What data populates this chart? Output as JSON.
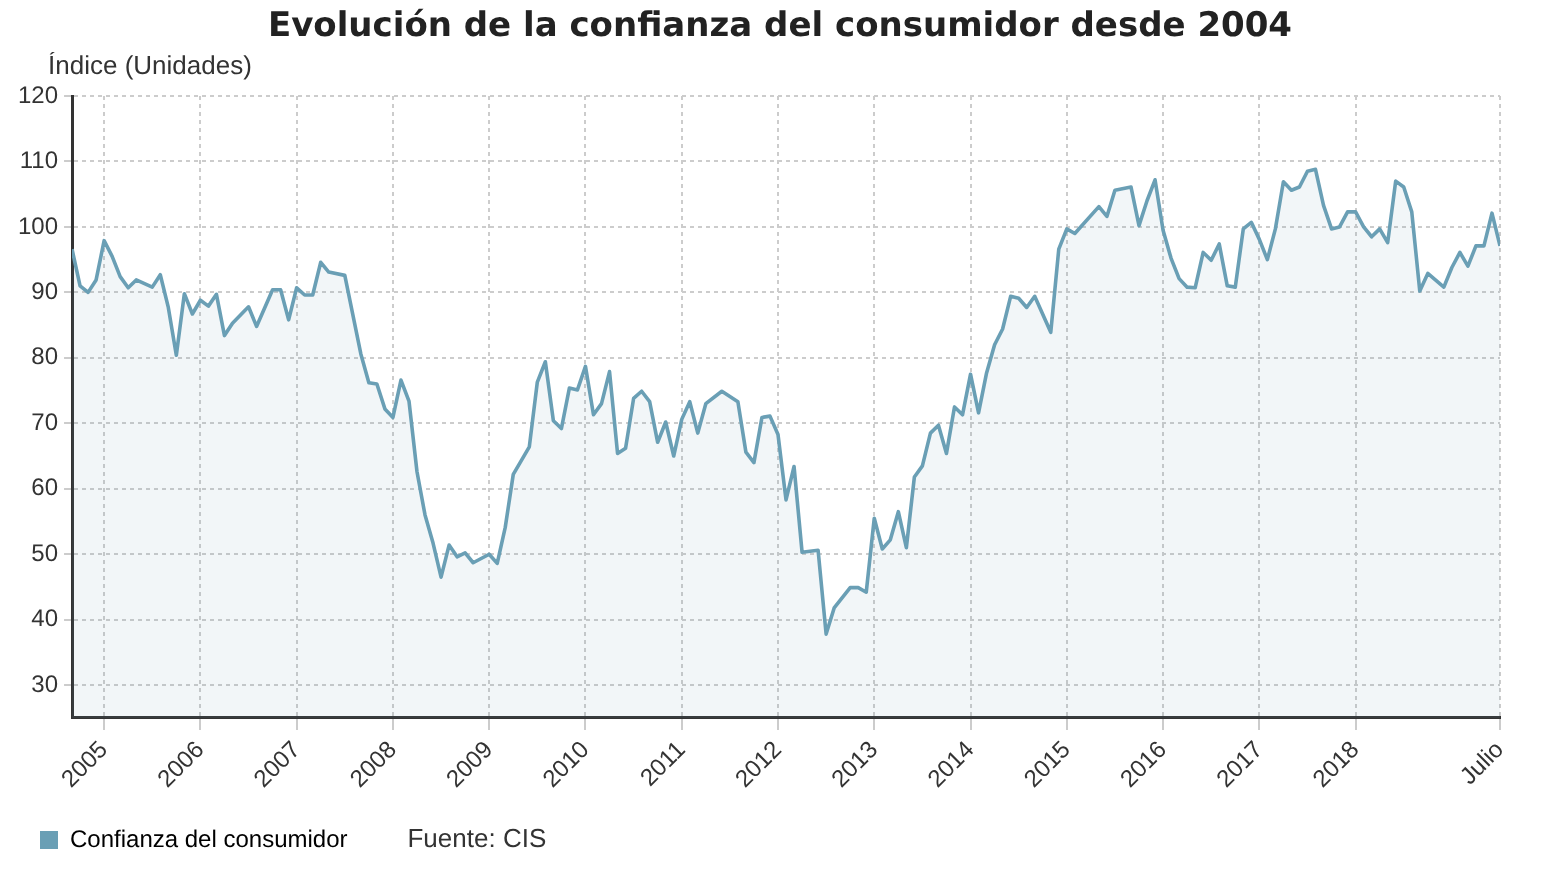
{
  "chart_data": {
    "type": "area",
    "title": "Evolución de la confianza del consumidor desde 2004",
    "ylabel": "Índice (Unidades)",
    "annotations": [
      "Fuente: CIS"
    ],
    "xlim": [
      "2004-09",
      "2019-07"
    ],
    "ylim": [
      25,
      120
    ],
    "yticks": [
      30,
      40,
      50,
      60,
      70,
      80,
      90,
      100,
      110,
      120
    ],
    "xticks": [
      "2005",
      "2006",
      "2007",
      "2008",
      "2009",
      "2010",
      "2011",
      "2012",
      "2013",
      "2014",
      "2015",
      "2016",
      "2017",
      "2018",
      {
        "value": "2019-07",
        "label": "Julio"
      }
    ],
    "grid": true,
    "legend": "bottom",
    "marker": "none",
    "line_style": "solid",
    "series": [
      {
        "name": "Confianza del consumidor",
        "color": "#6a9fb5",
        "x": [
          "2004-09",
          "2004-10",
          "2004-11",
          "2004-12",
          "2005-01",
          "2005-02",
          "2005-03",
          "2005-04",
          "2005-05",
          "2005-07",
          "2005-08",
          "2005-09",
          "2005-10",
          "2005-11",
          "2005-12",
          "2006-01",
          "2006-02",
          "2006-03",
          "2006-04",
          "2006-05",
          "2006-07",
          "2006-08",
          "2006-10",
          "2006-11",
          "2006-12",
          "2007-01",
          "2007-02",
          "2007-03",
          "2007-04",
          "2007-05",
          "2007-07",
          "2007-09",
          "2007-10",
          "2007-11",
          "2007-12",
          "2008-01",
          "2008-02",
          "2008-03",
          "2008-04",
          "2008-05",
          "2008-06",
          "2008-07",
          "2008-08",
          "2008-09",
          "2008-10",
          "2008-11",
          "2009-01",
          "2009-02",
          "2009-03",
          "2009-04",
          "2009-06",
          "2009-07",
          "2009-08",
          "2009-09",
          "2009-10",
          "2009-11",
          "2009-12",
          "2010-01",
          "2010-02",
          "2010-03",
          "2010-04",
          "2010-05",
          "2010-06",
          "2010-07",
          "2010-08",
          "2010-09",
          "2010-10",
          "2010-11",
          "2010-12",
          "2011-01",
          "2011-02",
          "2011-03",
          "2011-04",
          "2011-06",
          "2011-08",
          "2011-09",
          "2011-10",
          "2011-11",
          "2011-12",
          "2012-01",
          "2012-02",
          "2012-03",
          "2012-04",
          "2012-06",
          "2012-07",
          "2012-08",
          "2012-10",
          "2012-11",
          "2012-12",
          "2013-01",
          "2013-02",
          "2013-03",
          "2013-04",
          "2013-05",
          "2013-06",
          "2013-07",
          "2013-08",
          "2013-09",
          "2013-10",
          "2013-11",
          "2013-12",
          "2014-01",
          "2014-02",
          "2014-03",
          "2014-04",
          "2014-05",
          "2014-06",
          "2014-07",
          "2014-08",
          "2014-09",
          "2014-11",
          "2014-12",
          "2015-01",
          "2015-02",
          "2015-05",
          "2015-06",
          "2015-07",
          "2015-09",
          "2015-10",
          "2015-11",
          "2015-12",
          "2016-01",
          "2016-02",
          "2016-03",
          "2016-04",
          "2016-05",
          "2016-06",
          "2016-07",
          "2016-08",
          "2016-09",
          "2016-10",
          "2016-11",
          "2016-12",
          "2017-01",
          "2017-02",
          "2017-03",
          "2017-04",
          "2017-05",
          "2017-06",
          "2017-07",
          "2017-08",
          "2017-09",
          "2017-10",
          "2017-11",
          "2017-12",
          "2018-01",
          "2018-02",
          "2018-03",
          "2018-04",
          "2018-05",
          "2018-06",
          "2018-07",
          "2018-08",
          "2018-09",
          "2018-10",
          "2018-12",
          "2019-01",
          "2019-02",
          "2019-03",
          "2019-04",
          "2019-05",
          "2019-06",
          "2019-07"
        ],
        "values": [
          96.6,
          91.0,
          90.0,
          91.9,
          97.9,
          95.5,
          92.4,
          90.7,
          91.9,
          90.8,
          92.7,
          87.7,
          80.4,
          89.8,
          86.7,
          88.8,
          87.9,
          89.7,
          83.4,
          85.3,
          87.8,
          84.8,
          90.4,
          90.4,
          85.8,
          90.7,
          89.6,
          89.6,
          94.6,
          93.1,
          92.6,
          80.6,
          76.2,
          76.0,
          72.2,
          70.9,
          76.6,
          73.4,
          62.6,
          56.0,
          51.7,
          46.5,
          51.4,
          49.6,
          50.2,
          48.7,
          50.0,
          48.6,
          54.1,
          62.2,
          66.4,
          76.3,
          79.4,
          70.4,
          69.2,
          75.4,
          75.1,
          78.7,
          71.3,
          73.0,
          77.9,
          65.4,
          66.2,
          73.8,
          74.9,
          73.3,
          67.1,
          70.2,
          65.0,
          70.6,
          73.3,
          68.5,
          73.0,
          74.9,
          73.3,
          65.6,
          64.0,
          70.9,
          71.1,
          68.3,
          58.3,
          63.4,
          50.3,
          50.6,
          37.8,
          41.8,
          44.9,
          44.9,
          44.2,
          55.5,
          50.8,
          52.2,
          56.5,
          51.0,
          61.8,
          63.5,
          68.5,
          69.7,
          65.4,
          72.5,
          71.3,
          77.5,
          71.6,
          77.7,
          82.0,
          84.4,
          89.4,
          89.1,
          87.7,
          89.4,
          83.9,
          96.6,
          99.7,
          99.0,
          103.1,
          101.6,
          105.6,
          106.1,
          100.2,
          104.0,
          107.2,
          99.5,
          95.2,
          92.1,
          90.8,
          90.7,
          96.1,
          94.9,
          97.4,
          91.0,
          90.8,
          99.7,
          100.7,
          98.1,
          95.0,
          99.7,
          106.9,
          105.6,
          106.1,
          108.5,
          108.8,
          103.3,
          99.7,
          100.0,
          102.3,
          102.3,
          100.0,
          98.5,
          99.7,
          97.6,
          107.0,
          106.1,
          102.3,
          90.2,
          92.9,
          90.8,
          93.8,
          96.1,
          94.0,
          97.1,
          97.1,
          102.1,
          97.1
        ]
      }
    ]
  }
}
